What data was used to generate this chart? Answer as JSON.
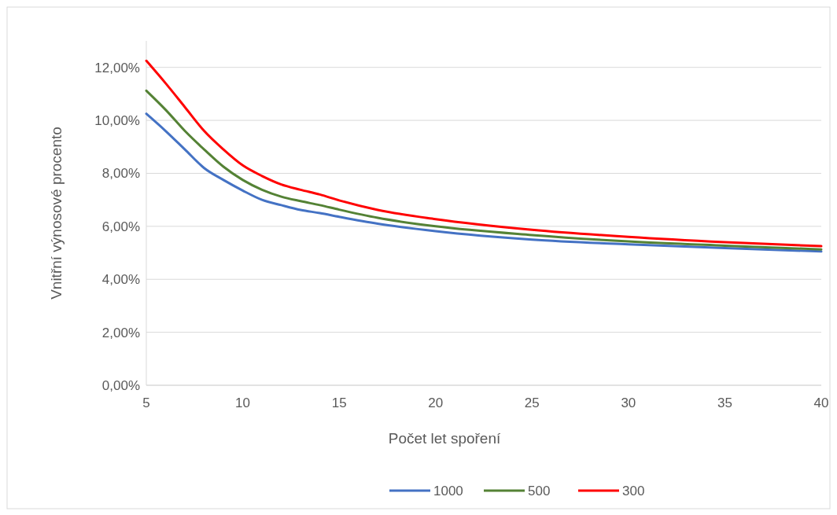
{
  "chart_data": {
    "type": "line",
    "xlabel": "Počet let spoření",
    "ylabel": "Vnitřní výnosové procento",
    "x": [
      5,
      6,
      7,
      8,
      9,
      10,
      11,
      12,
      13,
      14,
      15,
      17,
      20,
      25,
      30,
      35,
      40
    ],
    "series": [
      {
        "name": "1000",
        "color": "#4472c4",
        "values": [
          10.25,
          9.6,
          8.9,
          8.2,
          7.75,
          7.35,
          7.0,
          6.8,
          6.62,
          6.5,
          6.36,
          6.1,
          5.82,
          5.5,
          5.32,
          5.18,
          5.05
        ]
      },
      {
        "name": "500",
        "color": "#548235",
        "values": [
          11.12,
          10.4,
          9.6,
          8.9,
          8.25,
          7.75,
          7.38,
          7.12,
          6.95,
          6.8,
          6.63,
          6.32,
          6.0,
          5.67,
          5.43,
          5.27,
          5.13
        ]
      },
      {
        "name": "300",
        "color": "#ff0000",
        "values": [
          12.25,
          11.4,
          10.5,
          9.6,
          8.9,
          8.3,
          7.9,
          7.58,
          7.38,
          7.2,
          6.98,
          6.62,
          6.27,
          5.87,
          5.6,
          5.4,
          5.25
        ]
      }
    ],
    "xlim": [
      5,
      40
    ],
    "xticks": [
      5,
      10,
      15,
      20,
      25,
      30,
      35,
      40
    ],
    "ylim": [
      0,
      13
    ],
    "yticks": [
      {
        "value": 0,
        "label": "0,00%"
      },
      {
        "value": 2,
        "label": "2,00%"
      },
      {
        "value": 4,
        "label": "4,00%"
      },
      {
        "value": 6,
        "label": "6,00%"
      },
      {
        "value": 8,
        "label": "8,00%"
      },
      {
        "value": 10,
        "label": "10,00%"
      },
      {
        "value": 12,
        "label": "12,00%"
      }
    ],
    "grid": "y",
    "legend": "bottom",
    "marker": "none",
    "line_style": "solid"
  }
}
